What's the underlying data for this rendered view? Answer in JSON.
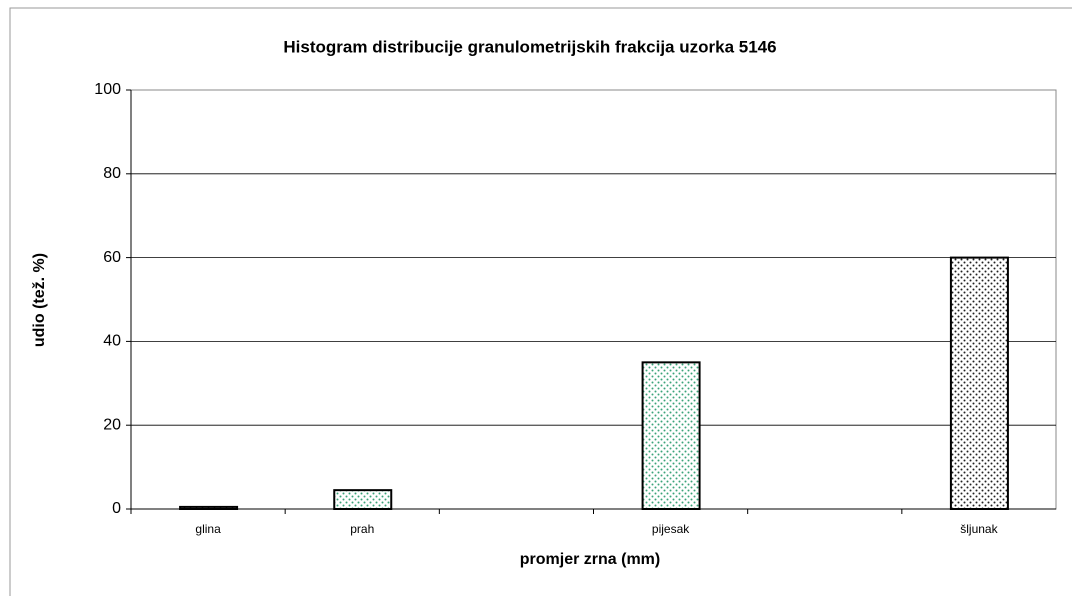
{
  "chart_data": {
    "type": "bar",
    "title": "Histogram distribucije granulometrijskih frakcija uzorka 5146",
    "x_label": "promjer zrna (mm)",
    "y_label": "udio (tež. %)",
    "categories": [
      "glina",
      "prah",
      null,
      "pijesak",
      null,
      "šljunak"
    ],
    "values": [
      0.5,
      4.5,
      null,
      35,
      null,
      60
    ],
    "colors": [
      "#222222",
      "#3aa37a",
      null,
      "#3aa37a",
      null,
      "#222222"
    ],
    "ylim": [
      0,
      100
    ],
    "yticks": [
      0,
      20,
      40,
      60,
      80,
      100
    ],
    "grid": true
  }
}
